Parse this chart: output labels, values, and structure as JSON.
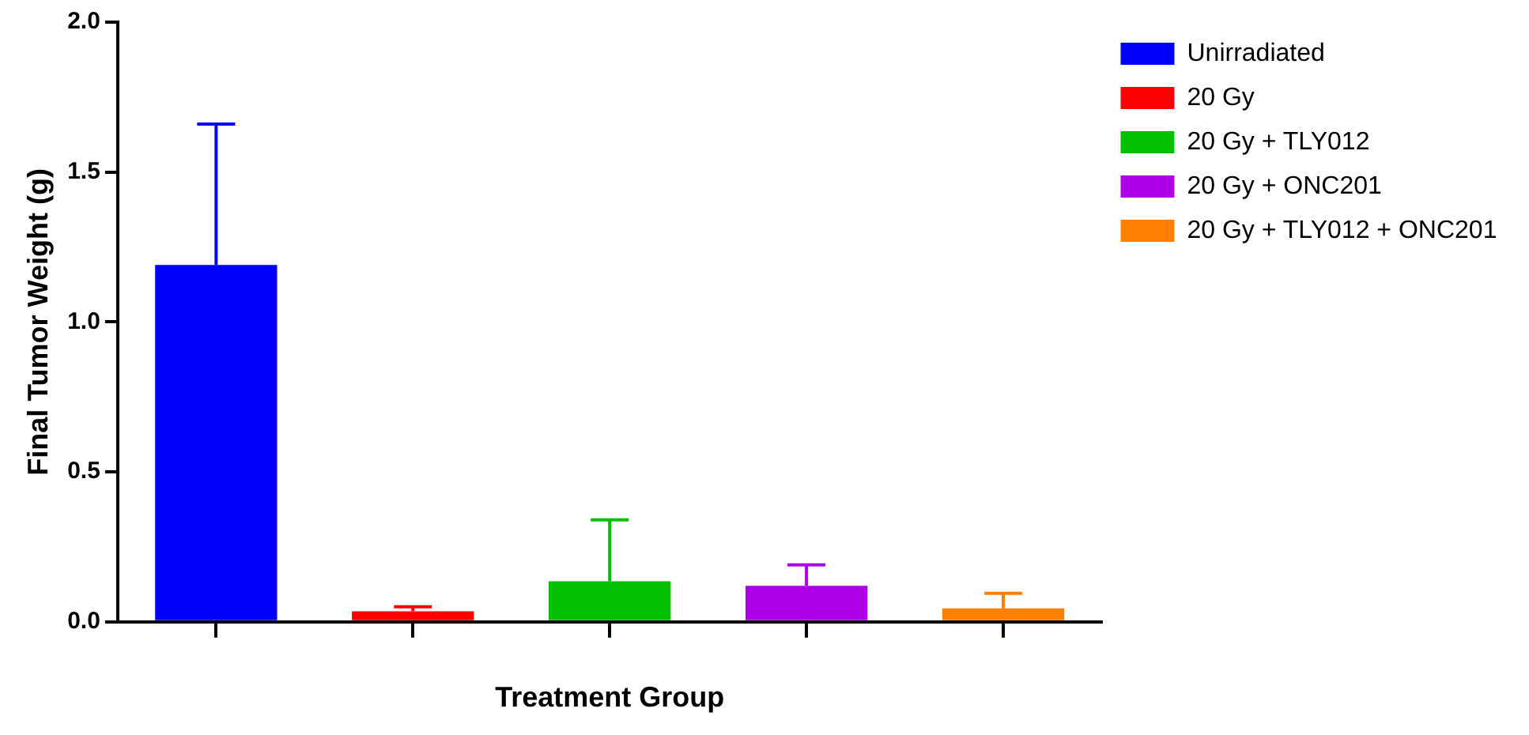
{
  "chart_data": {
    "type": "bar",
    "xlabel": "Treatment Group",
    "ylabel": "Final Tumor Weight (g)",
    "categories": [
      null,
      null,
      null,
      null,
      null
    ],
    "series": [
      {
        "name": "Unirradiated",
        "color": "#0000ff",
        "values": [
          1.19,
          null,
          null,
          null,
          null
        ],
        "errors": [
          [
            1.19,
            1.66
          ],
          null,
          null,
          null,
          null
        ]
      },
      {
        "name": "20 Gy",
        "color": "#ff0000",
        "values": [
          null,
          0.035,
          null,
          null,
          null
        ],
        "errors": [
          null,
          [
            0.035,
            0.05
          ],
          null,
          null,
          null
        ]
      },
      {
        "name": "20 Gy + TLY012",
        "color": "#00c000",
        "values": [
          null,
          null,
          0.135,
          null,
          null
        ],
        "errors": [
          null,
          null,
          [
            0.135,
            0.34
          ],
          null,
          null
        ]
      },
      {
        "name": "20 Gy + ONC201",
        "color": "#b000e8",
        "values": [
          null,
          null,
          null,
          0.12,
          null
        ],
        "errors": [
          null,
          null,
          null,
          [
            0.12,
            0.19
          ],
          null
        ]
      },
      {
        "name": "20 Gy + TLY012 + ONC201",
        "color": "#ff8000",
        "values": [
          null,
          null,
          null,
          null,
          0.045
        ],
        "errors": [
          null,
          null,
          null,
          null,
          [
            0.045,
            0.095
          ]
        ]
      }
    ],
    "ylim": [
      0,
      2
    ],
    "yticks": [
      {
        "value": 0,
        "label": "0.0"
      },
      {
        "value": 0.5,
        "label": "0.5"
      },
      {
        "value": 1,
        "label": "1.0"
      },
      {
        "value": 1.5,
        "label": "1.5"
      },
      {
        "value": 2,
        "label": "2.0"
      }
    ],
    "grid": false,
    "legend": "top right"
  }
}
